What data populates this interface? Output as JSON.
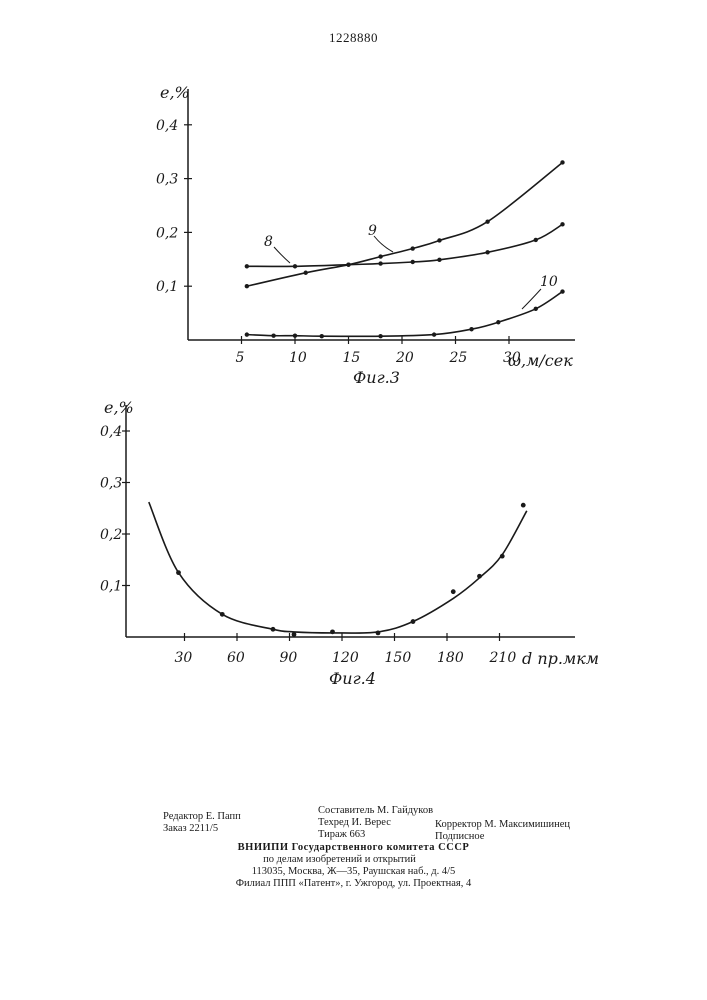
{
  "document_number": "1228880",
  "chart_data": [
    {
      "type": "line",
      "title": "",
      "caption": "Фиг.3",
      "ylabel": "e,%",
      "xlabel": "ω,м/сек",
      "xlim": [
        0,
        34
      ],
      "ylim": [
        0,
        0.45
      ],
      "x_ticks": [
        5,
        10,
        15,
        20,
        25,
        30
      ],
      "y_ticks": [
        0.1,
        0.2,
        0.3,
        0.4
      ],
      "series": [
        {
          "name": "8",
          "x": [
            5.5,
            10,
            15,
            18,
            21,
            23.5,
            28,
            32.5,
            35
          ],
          "y": [
            0.137,
            0.137,
            0.14,
            0.142,
            0.145,
            0.149,
            0.163,
            0.186,
            0.215
          ]
        },
        {
          "name": "9",
          "x": [
            5.5,
            11,
            15,
            18,
            21,
            23.5,
            28,
            35
          ],
          "y": [
            0.1,
            0.125,
            0.14,
            0.155,
            0.17,
            0.185,
            0.22,
            0.33
          ]
        },
        {
          "name": "10",
          "x": [
            5.5,
            8,
            10,
            12.5,
            18,
            23,
            26.5,
            29,
            32.5,
            35
          ],
          "y": [
            0.01,
            0.008,
            0.008,
            0.007,
            0.007,
            0.01,
            0.02,
            0.033,
            0.058,
            0.09
          ]
        }
      ]
    },
    {
      "type": "line",
      "title": "",
      "caption": "Фиг.4",
      "ylabel": "e,%",
      "xlabel": "d пр.мкм",
      "xlim": [
        0,
        240
      ],
      "ylim": [
        0,
        0.45
      ],
      "x_ticks": [
        30,
        60,
        90,
        120,
        150,
        180,
        210
      ],
      "y_ticks": [
        0.1,
        0.2,
        0.3,
        0.4
      ],
      "points": {
        "x": [
          30,
          55,
          84,
          96,
          118,
          144,
          164,
          187,
          202,
          215,
          227
        ],
        "y": [
          0.125,
          0.044,
          0.015,
          0.005,
          0.01,
          0.008,
          0.03,
          0.088,
          0.118,
          0.157,
          0.256
        ]
      },
      "curve": {
        "x": [
          13,
          30,
          55,
          84,
          96,
          118,
          144,
          164,
          187,
          202,
          215,
          229
        ],
        "y": [
          0.262,
          0.125,
          0.044,
          0.015,
          0.01,
          0.008,
          0.01,
          0.03,
          0.075,
          0.115,
          0.16,
          0.245
        ]
      }
    }
  ],
  "imprint": {
    "editor": "Редактор Е. Папп",
    "order": "Заказ 2211/5",
    "compiler": "Составитель М. Гайдуков",
    "techred": "Техред И. Верес",
    "circulation": "Тираж 663",
    "corrector": "Корректор М. Максимишинец",
    "subscription": "Подписное",
    "org1": "ВНИИПИ Государственного комитета СССР",
    "org2": "по делам изобретений и открытий",
    "address": "113035, Москва, Ж—35, Раушская наб., д. 4/5",
    "branch": "Филиал ППП «Патент», г. Ужгород, ул. Проектная, 4"
  }
}
